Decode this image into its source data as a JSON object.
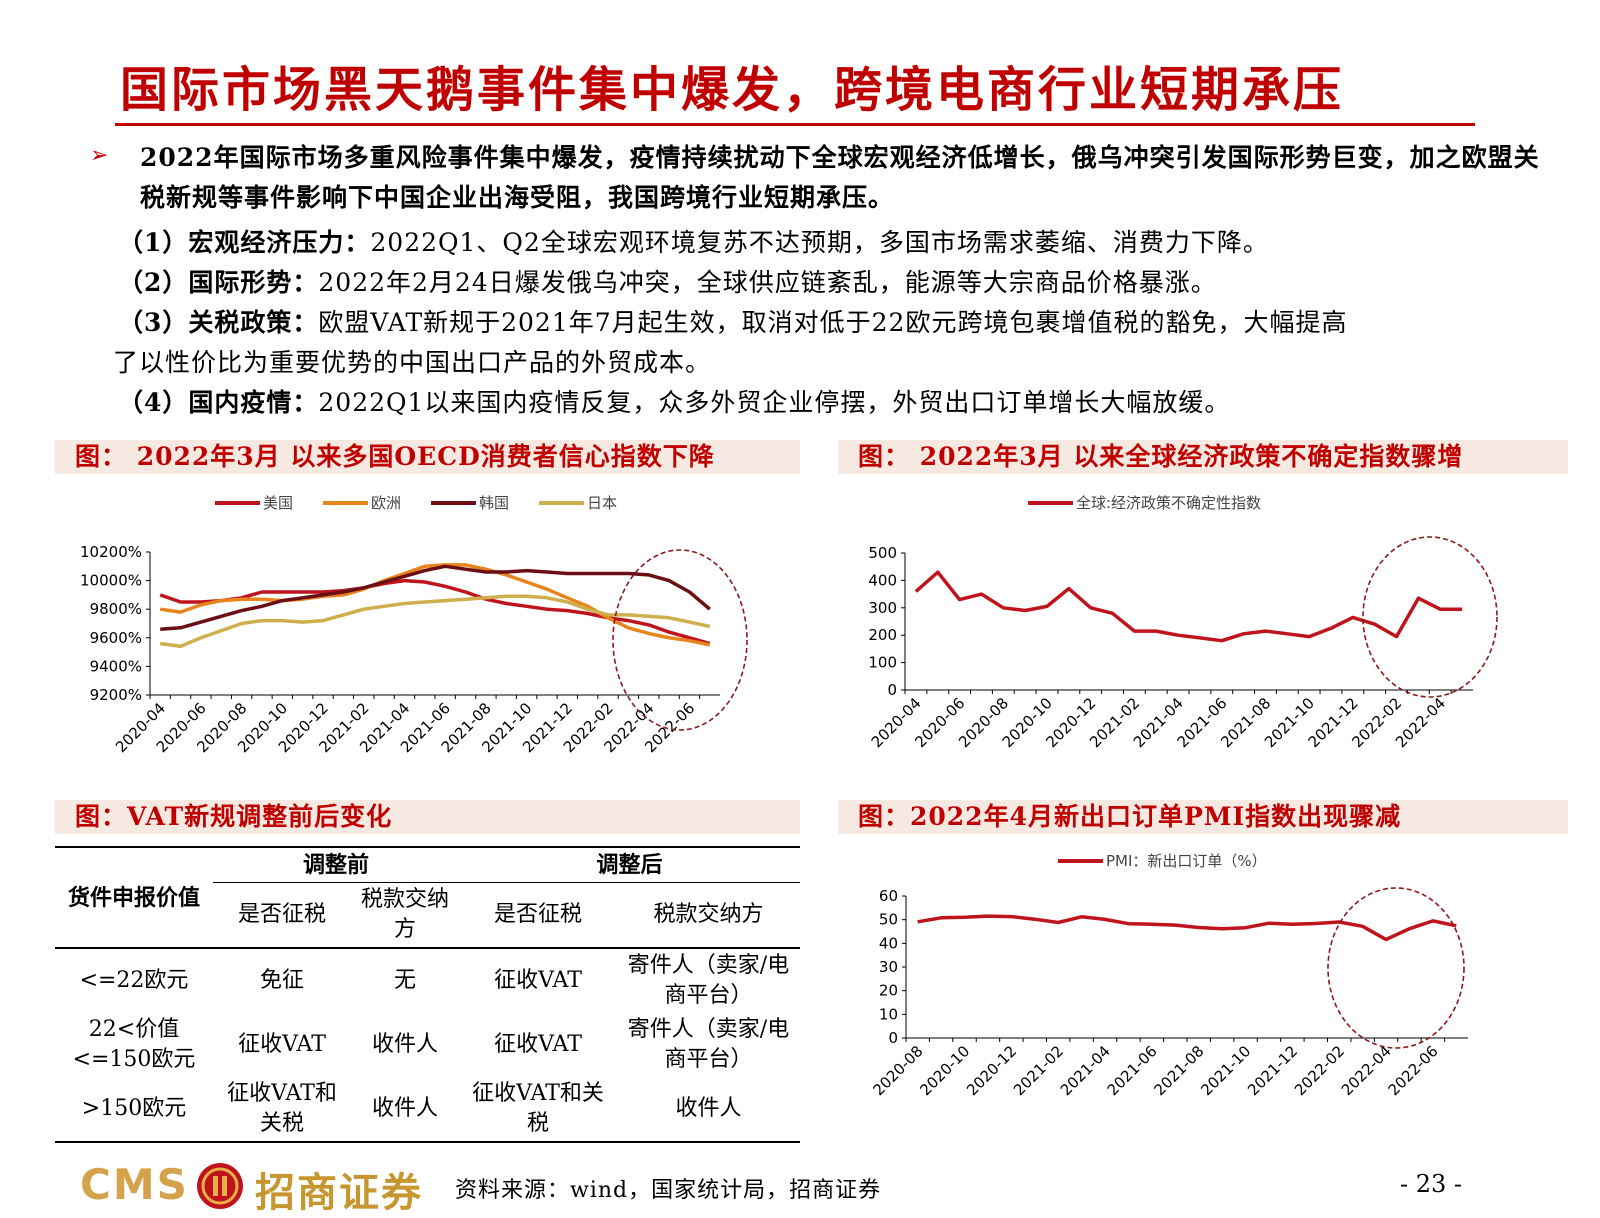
{
  "title": "国际市场黑天鹅事件集中爆发，跨境电商行业短期承压",
  "bullet": {
    "arrow": "➢",
    "text": "2022年国际市场多重风险事件集中爆发，疫情持续扰动下全球宏观经济低增长，俄乌冲突引发国际形势巨变，加之欧盟关税新规等事件影响下中国企业出海受阻，我国跨境行业短期承压。"
  },
  "points": [
    {
      "label": "（1）宏观经济压力：",
      "text": "2022Q1、Q2全球宏观环境复苏不达预期，多国市场需求萎缩、消费力下降。"
    },
    {
      "label": "（2）国际形势：",
      "text": "2022年2月24日爆发俄乌冲突，全球供应链紊乱，能源等大宗商品价格暴涨。"
    },
    {
      "label": "（3）关税政策：",
      "text": "欧盟VAT新规于2021年7月起生效，取消对低于22欧元跨境包裹增值税的豁免，大幅提高",
      "cont": "了以性价比为重要优势的中国出口产品的外贸成本。"
    },
    {
      "label": "（4）国内疫情：",
      "text": "2022Q1以来国内疫情反复，众多外贸企业停摆，外贸出口订单增长大幅放缓。"
    }
  ],
  "fig1_title": "图：  2022年3月 以来多国OECD消费者信心指数下降",
  "fig2_title": "图：  2022年3月 以来全球经济政策不确定指数骤增",
  "fig3_title": "图：VAT新规调整前后变化",
  "fig4_title": "图：2022年4月新出口订单PMI指数出现骤减",
  "table": {
    "col_item": "货件申报价值",
    "before": "调整前",
    "after": "调整后",
    "sub": [
      "是否征税",
      "税款交纳方",
      "是否征税",
      "税款交纳方"
    ],
    "rows": [
      [
        "<=22欧元",
        "免征",
        "无",
        "征收VAT",
        "寄件人（卖家/电商平台）"
      ],
      [
        "22<价值<=150欧元",
        "征收VAT",
        "收件人",
        "征收VAT",
        "寄件人（卖家/电商平台）"
      ],
      [
        ">150欧元",
        "征收VAT和关税",
        "收件人",
        "征收VAT和关税",
        "收件人"
      ]
    ]
  },
  "footer": {
    "logo_cms": "CMS",
    "logo_cn": "招商证券",
    "source": "资料来源：wind，国家统计局，招商证券",
    "page": "- 23 -"
  },
  "colors": {
    "accent": "#c00000",
    "us": "#c0141c",
    "eu": "#e8841c",
    "kr": "#6b0f14",
    "jp": "#cfae4c"
  },
  "chart_data": [
    {
      "type": "line",
      "title": "",
      "x": [
        "2020-04",
        "2020-05",
        "2020-06",
        "2020-07",
        "2020-08",
        "2020-09",
        "2020-10",
        "2020-11",
        "2020-12",
        "2021-01",
        "2021-02",
        "2021-03",
        "2021-04",
        "2021-05",
        "2021-06",
        "2021-07",
        "2021-08",
        "2021-09",
        "2021-10",
        "2021-11",
        "2021-12",
        "2022-01",
        "2022-02",
        "2022-03",
        "2022-04",
        "2022-05",
        "2022-06",
        "2022-07"
      ],
      "xticks": [
        "2020-04",
        "2020-06",
        "2020-08",
        "2020-10",
        "2020-12",
        "2021-02",
        "2021-04",
        "2021-06",
        "2021-08",
        "2021-10",
        "2021-12",
        "2022-02",
        "2022-04",
        "2022-06"
      ],
      "ylim": [
        9200,
        10200
      ],
      "yticks": [
        "9200%",
        "9400%",
        "9600%",
        "9800%",
        "10000%",
        "10200%"
      ],
      "legend_position": "top",
      "series": [
        {
          "name": "美国",
          "color": "#c0141c",
          "values": [
            9900,
            9850,
            9850,
            9860,
            9880,
            9920,
            9920,
            9920,
            9920,
            9930,
            9950,
            9980,
            10000,
            9990,
            9960,
            9920,
            9870,
            9840,
            9820,
            9800,
            9790,
            9770,
            9740,
            9720,
            9690,
            9640,
            9600,
            9560
          ]
        },
        {
          "name": "欧洲",
          "color": "#e8841c",
          "values": [
            9800,
            9780,
            9830,
            9860,
            9870,
            9870,
            9860,
            9870,
            9890,
            9900,
            9940,
            10000,
            10050,
            10100,
            10110,
            10110,
            10080,
            10040,
            9990,
            9940,
            9880,
            9820,
            9740,
            9670,
            9630,
            9600,
            9580,
            9550
          ]
        },
        {
          "name": "韩国",
          "color": "#6b0f14",
          "values": [
            9660,
            9670,
            9710,
            9750,
            9790,
            9820,
            9860,
            9880,
            9900,
            9920,
            9950,
            9990,
            10030,
            10070,
            10100,
            10080,
            10060,
            10060,
            10070,
            10060,
            10050,
            10050,
            10050,
            10050,
            10040,
            10000,
            9920,
            9800
          ]
        },
        {
          "name": "日本",
          "color": "#cfae4c",
          "values": [
            9560,
            9540,
            9600,
            9650,
            9700,
            9720,
            9720,
            9710,
            9720,
            9760,
            9800,
            9820,
            9840,
            9850,
            9860,
            9870,
            9880,
            9890,
            9890,
            9880,
            9850,
            9800,
            9760,
            9760,
            9750,
            9740,
            9710,
            9680
          ]
        }
      ]
    },
    {
      "type": "line",
      "title": "",
      "x": [
        "2020-04",
        "2020-05",
        "2020-06",
        "2020-07",
        "2020-08",
        "2020-09",
        "2020-10",
        "2020-11",
        "2020-12",
        "2021-01",
        "2021-02",
        "2021-03",
        "2021-04",
        "2021-05",
        "2021-06",
        "2021-07",
        "2021-08",
        "2021-09",
        "2021-10",
        "2021-11",
        "2021-12",
        "2022-01",
        "2022-02",
        "2022-03",
        "2022-04",
        "2022-05"
      ],
      "xticks": [
        "2020-04",
        "2020-06",
        "2020-08",
        "2020-10",
        "2020-12",
        "2021-02",
        "2021-04",
        "2021-06",
        "2021-08",
        "2021-10",
        "2021-12",
        "2022-02",
        "2022-04"
      ],
      "ylim": [
        0,
        500
      ],
      "yticks": [
        "0",
        "100",
        "200",
        "300",
        "400",
        "500"
      ],
      "legend_position": "top",
      "series": [
        {
          "name": "全球:经济政策不确定性指数",
          "color": "#c0141c",
          "values": [
            360,
            430,
            330,
            350,
            300,
            290,
            305,
            370,
            300,
            280,
            215,
            215,
            200,
            190,
            180,
            205,
            215,
            205,
            195,
            225,
            265,
            240,
            195,
            335,
            295,
            295
          ]
        }
      ]
    },
    {
      "type": "line",
      "title": "",
      "x": [
        "2020-08",
        "2020-09",
        "2020-10",
        "2020-11",
        "2020-12",
        "2021-01",
        "2021-02",
        "2021-03",
        "2021-04",
        "2021-05",
        "2021-06",
        "2021-07",
        "2021-08",
        "2021-09",
        "2021-10",
        "2021-11",
        "2021-12",
        "2022-01",
        "2022-02",
        "2022-03",
        "2022-04",
        "2022-05",
        "2022-06",
        "2022-07"
      ],
      "xticks": [
        "2020-08",
        "2020-10",
        "2020-12",
        "2021-02",
        "2021-04",
        "2021-06",
        "2021-08",
        "2021-10",
        "2021-12",
        "2022-02",
        "2022-04",
        "2022-06"
      ],
      "ylim": [
        0,
        60
      ],
      "yticks": [
        "0",
        "10",
        "20",
        "30",
        "40",
        "50",
        "60"
      ],
      "legend_position": "top",
      "series": [
        {
          "name": "PMI：新出口订单（%）",
          "color": "#c0141c",
          "values": [
            49.1,
            50.8,
            51.0,
            51.5,
            51.3,
            50.2,
            48.8,
            51.2,
            50.1,
            48.3,
            48.1,
            47.7,
            46.7,
            46.2,
            46.6,
            48.5,
            48.1,
            48.4,
            49.0,
            47.2,
            41.6,
            46.2,
            49.5,
            47.4
          ]
        }
      ]
    }
  ]
}
